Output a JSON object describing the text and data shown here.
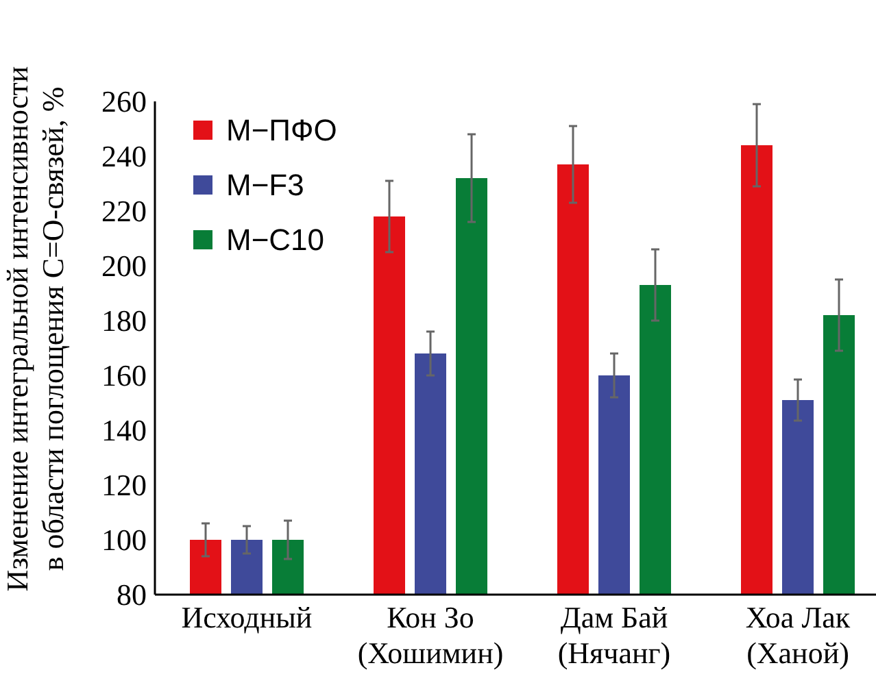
{
  "chart_data": {
    "type": "bar",
    "ylabel": "Изменение интегральной интенсивности в области поглощения С=О-связей, %",
    "categories": [
      "Исходный",
      "Кон Зо\n(Хошимин)",
      "Дам Бай\n(Нячанг)",
      "Хоа Лак\n(Ханой)"
    ],
    "series": [
      {
        "name": "М−ПФО",
        "color": "#e31117",
        "values": [
          100,
          218,
          237,
          244
        ],
        "errors": [
          6,
          13,
          14,
          15
        ]
      },
      {
        "name": "М−F3",
        "color": "#3f4a9a",
        "values": [
          100,
          168,
          160,
          151
        ],
        "errors": [
          5,
          8,
          8,
          7.5
        ]
      },
      {
        "name": "М−C10",
        "color": "#087d37",
        "values": [
          100,
          232,
          193,
          182
        ],
        "errors": [
          7,
          16,
          13,
          13
        ]
      }
    ],
    "ylim": [
      80,
      260
    ],
    "yticks": [
      80,
      100,
      120,
      140,
      160,
      180,
      200,
      220,
      240,
      260
    ],
    "grid": false,
    "legend": "top left"
  }
}
